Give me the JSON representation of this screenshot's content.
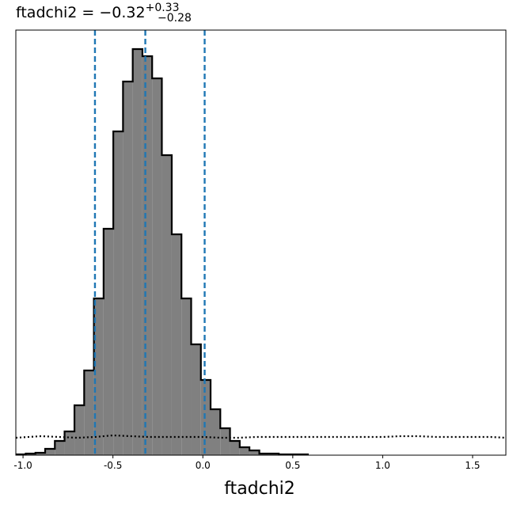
{
  "chart_data": {
    "type": "histogram",
    "title": "ftadchi2 = −0.32",
    "title_sup": "+0.33",
    "title_sub": "−0.28",
    "xlabel": "ftadchi2",
    "bins": [
      -1.039,
      -0.985,
      -0.931,
      -0.877,
      -0.823,
      -0.769,
      -0.714,
      -0.66,
      -0.606,
      -0.552,
      -0.498,
      -0.444,
      -0.39,
      -0.336,
      -0.282,
      -0.228,
      -0.173,
      -0.119,
      -0.065,
      -0.011,
      0.043,
      0.097,
      0.151,
      0.205,
      0.259,
      0.314,
      0.368,
      0.422,
      0.476,
      0.53,
      0.584
    ],
    "values": [
      1,
      2,
      3,
      8,
      18,
      30,
      63,
      107,
      198,
      286,
      409,
      472,
      513,
      504,
      476,
      379,
      279,
      198,
      140,
      95,
      58,
      34,
      18,
      10,
      6,
      2,
      2,
      1,
      1,
      1
    ],
    "color": "#808080",
    "edge_color": "#000000",
    "prior": {
      "x": [
        -1.04,
        -0.9,
        -0.8,
        -0.7,
        -0.6,
        -0.5,
        -0.4,
        -0.3,
        -0.2,
        -0.1,
        0.0,
        0.1,
        0.2,
        0.3,
        0.4,
        0.5,
        0.6,
        0.7,
        0.8,
        0.9,
        1.0,
        1.1,
        1.2,
        1.3,
        1.4,
        1.5,
        1.6,
        1.685
      ],
      "values": [
        22,
        24,
        23,
        22,
        23,
        25,
        24,
        23,
        23,
        23,
        23,
        22,
        22,
        23,
        23,
        23,
        23,
        23,
        23,
        23,
        23,
        24,
        24,
        23,
        23,
        23,
        23,
        22
      ],
      "color": "#000000"
    },
    "vlines": [
      -0.6,
      -0.32,
      0.01
    ],
    "vline_color": "#1f77b4",
    "xlim": [
      -1.04,
      1.685
    ],
    "ylim": [
      0,
      537
    ],
    "xticks": [
      {
        "value": -1.0,
        "label": "-1.0"
      },
      -0.5,
      {
        "value": 0.0,
        "label": "0.0"
      },
      0.5,
      {
        "value": 1.0,
        "label": "1.0"
      },
      1.5
    ]
  }
}
